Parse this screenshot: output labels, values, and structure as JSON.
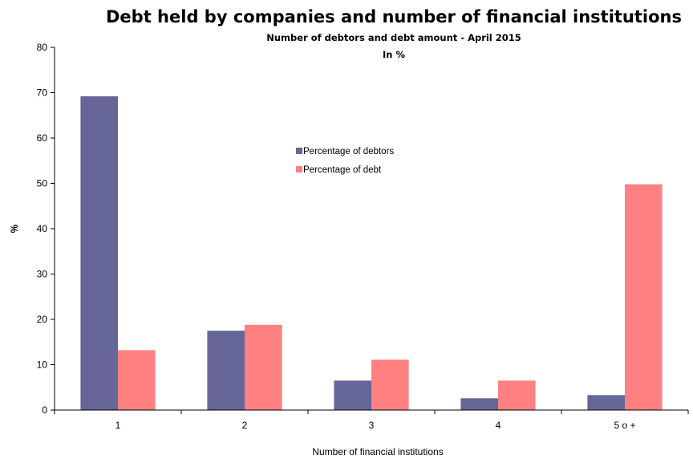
{
  "chart_data": {
    "type": "bar",
    "title": "Debt held by companies and number of financial institutions",
    "subtitle": "Number of debtors and debt amount - April 2015",
    "subtitle2": "In %",
    "xlabel": "Number of financial institutions",
    "ylabel": "%",
    "ylim": [
      0,
      80
    ],
    "yticks": [
      "0",
      "10",
      "20",
      "30",
      "40",
      "50",
      "60",
      "70",
      "80"
    ],
    "categories": [
      "1",
      "2",
      "3",
      "4",
      "5 o +"
    ],
    "series": [
      {
        "name": "Percentage of debtors",
        "color": "#666699",
        "values": [
          69.2,
          17.5,
          6.5,
          2.6,
          3.3
        ]
      },
      {
        "name": "Percentage of debt",
        "color": "#ff8080",
        "values": [
          13.2,
          18.8,
          11.1,
          6.5,
          49.8
        ]
      }
    ],
    "grid": false,
    "legend_position": "center-top"
  }
}
